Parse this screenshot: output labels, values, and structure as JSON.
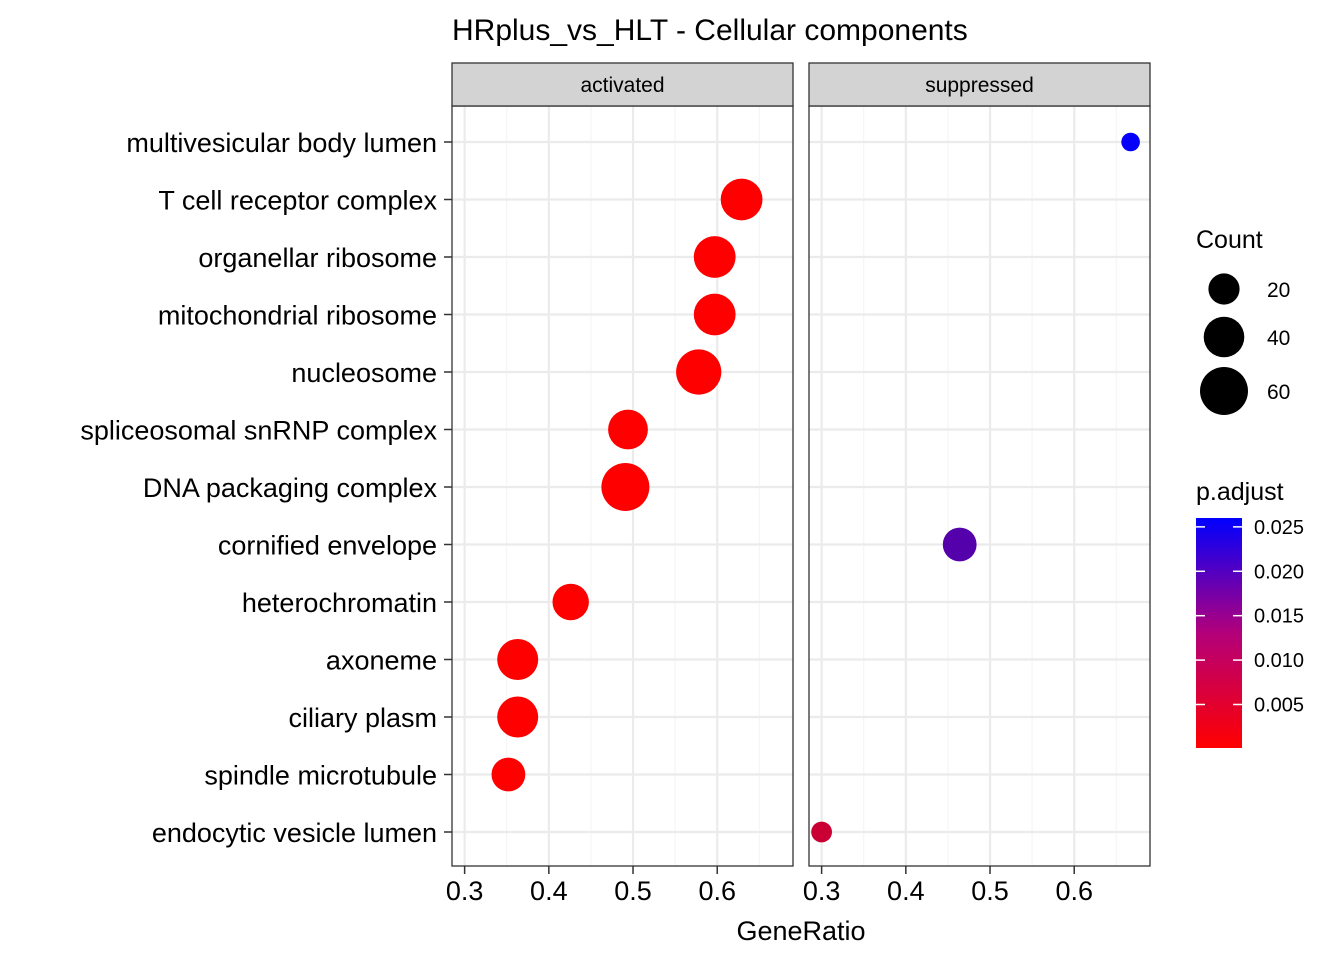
{
  "chart_data": {
    "type": "scatter",
    "title": "HRplus_vs_HLT - Cellular components",
    "xlabel": "GeneRatio",
    "ylabel": "",
    "xlim": [
      0.285,
      0.69
    ],
    "x_ticks": [
      0.3,
      0.4,
      0.5,
      0.6
    ],
    "x_tick_labels": [
      "0.3",
      "0.4",
      "0.5",
      "0.6"
    ],
    "grid": true,
    "categories": [
      "multivesicular body lumen",
      "T cell receptor complex",
      "organellar ribosome",
      "mitochondrial ribosome",
      "nucleosome",
      "spliceosomal snRNP complex",
      "DNA packaging complex",
      "cornified envelope",
      "heterochromatin",
      "axoneme",
      "ciliary plasm",
      "spindle microtubule",
      "endocytic vesicle lumen"
    ],
    "panels": [
      {
        "label": "activated",
        "points": [
          {
            "category": "T cell receptor complex",
            "x": 0.629,
            "count": 43,
            "p_adjust": 0.0001
          },
          {
            "category": "organellar ribosome",
            "x": 0.597,
            "count": 43,
            "p_adjust": 0.0001
          },
          {
            "category": "mitochondrial ribosome",
            "x": 0.597,
            "count": 43,
            "p_adjust": 0.0001
          },
          {
            "category": "nucleosome",
            "x": 0.578,
            "count": 52,
            "p_adjust": 0.0001
          },
          {
            "category": "spliceosomal snRNP complex",
            "x": 0.494,
            "count": 38,
            "p_adjust": 0.0001
          },
          {
            "category": "DNA packaging complex",
            "x": 0.491,
            "count": 60,
            "p_adjust": 0.0001
          },
          {
            "category": "heterochromatin",
            "x": 0.426,
            "count": 30,
            "p_adjust": 0.0001
          },
          {
            "category": "axoneme",
            "x": 0.363,
            "count": 41,
            "p_adjust": 0.0001
          },
          {
            "category": "ciliary plasm",
            "x": 0.363,
            "count": 41,
            "p_adjust": 0.0001
          },
          {
            "category": "spindle microtubule",
            "x": 0.352,
            "count": 25,
            "p_adjust": 0.0001
          }
        ]
      },
      {
        "label": "suppressed",
        "points": [
          {
            "category": "multivesicular body lumen",
            "x": 0.667,
            "count": 4,
            "p_adjust": 0.0255
          },
          {
            "category": "cornified envelope",
            "x": 0.464,
            "count": 25,
            "p_adjust": 0.0175
          },
          {
            "category": "endocytic vesicle lumen",
            "x": 0.3,
            "count": 6,
            "p_adjust": 0.0055
          }
        ]
      }
    ],
    "legend_count": {
      "title": "Count",
      "values": [
        20,
        40,
        60
      ],
      "labels": [
        "20",
        "40",
        "60"
      ]
    },
    "legend_color": {
      "title": "p.adjust",
      "range": [
        0.0001,
        0.026
      ],
      "ticks": [
        0.005,
        0.01,
        0.015,
        0.02,
        0.025
      ],
      "tick_labels": [
        "0.005",
        "0.010",
        "0.015",
        "0.020",
        "0.025"
      ],
      "low_color": "#ff0000",
      "high_color": "#0000ff"
    },
    "legend_placement": "right",
    "colors": {
      "strip_fill": "#d3d3d3",
      "grid_major": "#ebebeb",
      "grid_minor": "#f5f5f5",
      "panel_border": "#333333"
    }
  }
}
